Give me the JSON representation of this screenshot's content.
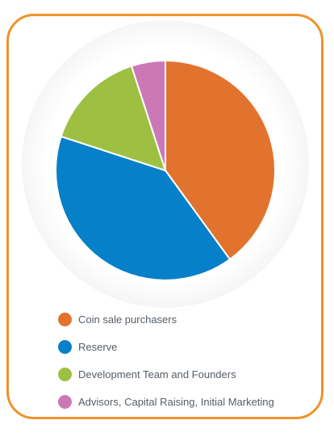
{
  "chart_data": {
    "type": "pie",
    "legend_position": "bottom",
    "slices": [
      {
        "label": "Coin sale purchasers",
        "value": 40,
        "color": "#e2732f"
      },
      {
        "label": "Reserve",
        "value": 40,
        "color": "#0680c8"
      },
      {
        "label": "Development Team and Founders",
        "value": 15,
        "color": "#9dc043"
      },
      {
        "label": "Advisors, Capital Raising, Initial Marketing",
        "value": 5,
        "color": "#cc78b7"
      }
    ]
  },
  "style": {
    "frame_color": "#f0922a"
  }
}
